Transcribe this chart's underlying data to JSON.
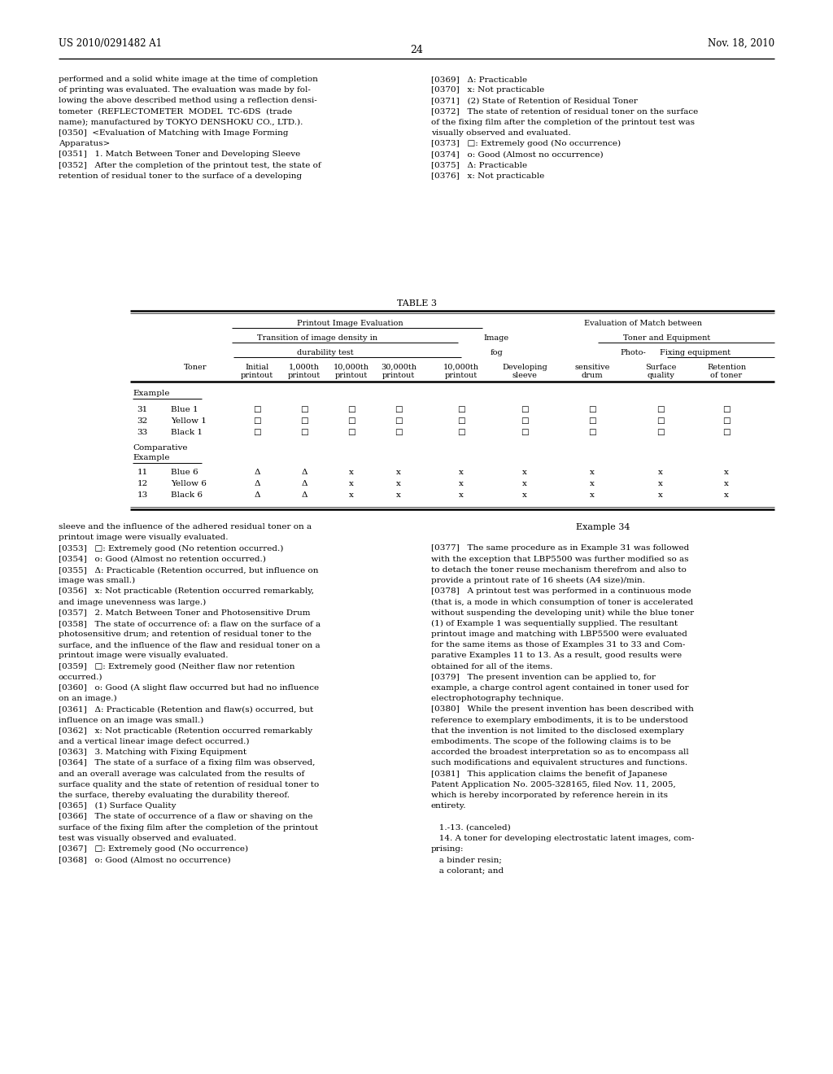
{
  "page_number": "24",
  "patent_number": "US 2010/0291482 A1",
  "patent_date": "Nov. 18, 2010",
  "background_color": "#ffffff",
  "left_col_lines_top": [
    "performed and a solid white image at the time of completion",
    "of printing was evaluated. The evaluation was made by fol-",
    "lowing the above described method using a reflection densi-",
    "tometer  (REFLECTOMETER  MODEL  TC-6DS  (trade",
    "name); manufactured by TOKYO DENSHOKU CO., LTD.).",
    "[0350]  <Evaluation of Matching with Image Forming",
    "Apparatus>",
    "[0351]   1. Match Between Toner and Developing Sleeve",
    "[0352]   After the completion of the printout test, the state of",
    "retention of residual toner to the surface of a developing"
  ],
  "right_col_lines_top": [
    "[0369]   Δ: Practicable",
    "[0370]   x: Not practicable",
    "[0371]   (2) State of Retention of Residual Toner",
    "[0372]   The state of retention of residual toner on the surface",
    "of the fixing film after the completion of the printout test was",
    "visually observed and evaluated.",
    "[0373]   □: Extremely good (No occurrence)",
    "[0374]   o: Good (Almost no occurrence)",
    "[0375]   Δ: Practicable",
    "[0376]   x: Not practicable"
  ],
  "table_title": "TABLE 3",
  "left_col_lines_bot": [
    "sleeve and the influence of the adhered residual toner on a",
    "printout image were visually evaluated.",
    "[0353]   □: Extremely good (No retention occurred.)",
    "[0354]   o: Good (Almost no retention occurred.)",
    "[0355]   Δ: Practicable (Retention occurred, but influence on",
    "image was small.)",
    "[0356]   x: Not practicable (Retention occurred remarkably,",
    "and image unevenness was large.)",
    "[0357]   2. Match Between Toner and Photosensitive Drum",
    "[0358]   The state of occurrence of: a flaw on the surface of a",
    "photosensitive drum; and retention of residual toner to the",
    "surface, and the influence of the flaw and residual toner on a",
    "printout image were visually evaluated.",
    "[0359]   □: Extremely good (Neither flaw nor retention",
    "occurred.)",
    "[0360]   o: Good (A slight flaw occurred but had no influence",
    "on an image.)",
    "[0361]   Δ: Practicable (Retention and flaw(s) occurred, but",
    "influence on an image was small.)",
    "[0362]   x: Not practicable (Retention occurred remarkably",
    "and a vertical linear image defect occurred.)",
    "[0363]   3. Matching with Fixing Equipment",
    "[0364]   The state of a surface of a fixing film was observed,",
    "and an overall average was calculated from the results of",
    "surface quality and the state of retention of residual toner to",
    "the surface, thereby evaluating the durability thereof.",
    "[0365]   (1) Surface Quality",
    "[0366]   The state of occurrence of a flaw or shaving on the",
    "surface of the fixing film after the completion of the printout",
    "test was visually observed and evaluated.",
    "[0367]   □: Extremely good (No occurrence)",
    "[0368]   o: Good (Almost no occurrence)"
  ],
  "right_col_lines_bot": [
    "[0377]   The same procedure as in Example 31 was followed",
    "with the exception that LBP5500 was further modified so as",
    "to detach the toner reuse mechanism therefrom and also to",
    "provide a printout rate of 16 sheets (A4 size)/min.",
    "[0378]   A printout test was performed in a continuous mode",
    "(that is, a mode in which consumption of toner is accelerated",
    "without suspending the developing unit) while the blue toner",
    "(1) of Example 1 was sequentially supplied. The resultant",
    "printout image and matching with LBP5500 were evaluated",
    "for the same items as those of Examples 31 to 33 and Com-",
    "parative Examples 11 to 13. As a result, good results were",
    "obtained for all of the items.",
    "[0379]   The present invention can be applied to, for",
    "example, a charge control agent contained in toner used for",
    "electrophotography technique.",
    "[0380]   While the present invention has been described with",
    "reference to exemplary embodiments, it is to be understood",
    "that the invention is not limited to the disclosed exemplary",
    "embodiments. The scope of the following claims is to be",
    "accorded the broadest interpretation so as to encompass all",
    "such modifications and equivalent structures and functions.",
    "[0381]   This application claims the benefit of Japanese",
    "Patent Application No. 2005-328165, filed Nov. 11, 2005,",
    "which is hereby incorporated by reference herein in its",
    "entirety.",
    "",
    "   1.-13. (canceled)",
    "   14. A toner for developing electrostatic latent images, com-",
    "prising:",
    "   a binder resin;",
    "   a colorant; and"
  ],
  "table_data_example": [
    {
      "num": "31",
      "toner": "Blue 1",
      "v": [
        "□",
        "□",
        "□",
        "□",
        "□",
        "□",
        "□",
        "□",
        "□"
      ]
    },
    {
      "num": "32",
      "toner": "Yellow 1",
      "v": [
        "□",
        "□",
        "□",
        "□",
        "□",
        "□",
        "□",
        "□",
        "□"
      ]
    },
    {
      "num": "33",
      "toner": "Black 1",
      "v": [
        "□",
        "□",
        "□",
        "□",
        "□",
        "□",
        "□",
        "□",
        "□"
      ]
    }
  ],
  "table_data_comp": [
    {
      "num": "11",
      "toner": "Blue 6",
      "v": [
        "Δ",
        "Δ",
        "x",
        "x",
        "x",
        "x",
        "x",
        "x",
        "x"
      ]
    },
    {
      "num": "12",
      "toner": "Yellow 6",
      "v": [
        "Δ",
        "Δ",
        "x",
        "x",
        "x",
        "x",
        "x",
        "x",
        "x"
      ]
    },
    {
      "num": "13",
      "toner": "Black 6",
      "v": [
        "Δ",
        "Δ",
        "x",
        "x",
        "x",
        "x",
        "x",
        "x",
        "x"
      ]
    }
  ]
}
